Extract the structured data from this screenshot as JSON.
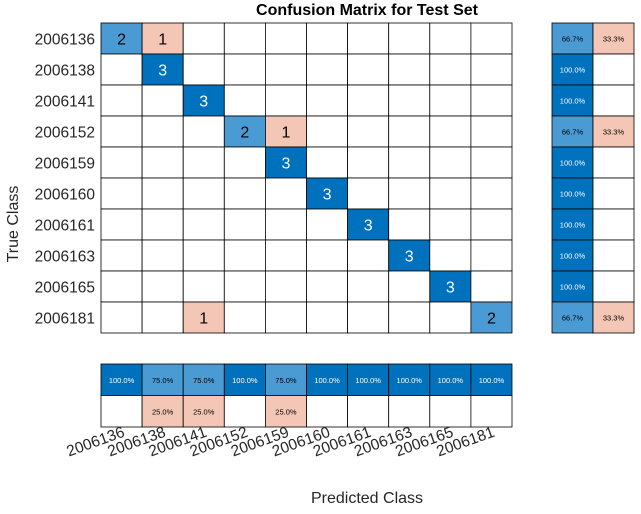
{
  "colors": {
    "strong_correct": "#0072bd",
    "light_correct": "#4a9bd4",
    "strong_incorrect": "#d95319",
    "light_incorrect": "#f3c6b5",
    "grid": "#000000",
    "background": "#ffffff",
    "dark_text": "#000000",
    "light_text": "#ffffff"
  },
  "chart_data": {
    "type": "heatmap",
    "title": "Confusion Matrix for Test Set",
    "xlabel": "Predicted Class",
    "ylabel": "True Class",
    "classes": [
      "2006136",
      "2006138",
      "2006141",
      "2006152",
      "2006159",
      "2006160",
      "2006161",
      "2006163",
      "2006165",
      "2006181"
    ],
    "matrix": [
      [
        2,
        1,
        0,
        0,
        0,
        0,
        0,
        0,
        0,
        0
      ],
      [
        0,
        3,
        0,
        0,
        0,
        0,
        0,
        0,
        0,
        0
      ],
      [
        0,
        0,
        3,
        0,
        0,
        0,
        0,
        0,
        0,
        0
      ],
      [
        0,
        0,
        0,
        2,
        1,
        0,
        0,
        0,
        0,
        0
      ],
      [
        0,
        0,
        0,
        0,
        3,
        0,
        0,
        0,
        0,
        0
      ],
      [
        0,
        0,
        0,
        0,
        0,
        3,
        0,
        0,
        0,
        0
      ],
      [
        0,
        0,
        0,
        0,
        0,
        0,
        3,
        0,
        0,
        0
      ],
      [
        0,
        0,
        0,
        0,
        0,
        0,
        0,
        3,
        0,
        0
      ],
      [
        0,
        0,
        0,
        0,
        0,
        0,
        0,
        0,
        3,
        0
      ],
      [
        0,
        0,
        1,
        0,
        0,
        0,
        0,
        0,
        0,
        2
      ]
    ],
    "row_summary": {
      "correct": [
        "66.7%",
        "100.0%",
        "100.0%",
        "66.7%",
        "100.0%",
        "100.0%",
        "100.0%",
        "100.0%",
        "100.0%",
        "66.7%"
      ],
      "incorrect": [
        "33.3%",
        "",
        "",
        "33.3%",
        "",
        "",
        "",
        "",
        "",
        "33.3%"
      ]
    },
    "column_summary": {
      "correct": [
        "100.0%",
        "75.0%",
        "75.0%",
        "100.0%",
        "75.0%",
        "100.0%",
        "100.0%",
        "100.0%",
        "100.0%",
        "100.0%"
      ],
      "incorrect": [
        "",
        "25.0%",
        "25.0%",
        "",
        "25.0%",
        "",
        "",
        "",
        "",
        ""
      ]
    }
  }
}
